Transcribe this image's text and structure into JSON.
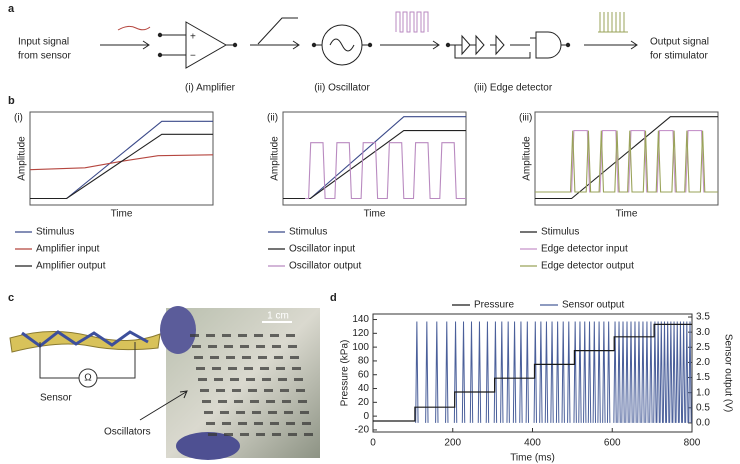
{
  "panel_a": {
    "label": "a",
    "input": [
      "Input signal",
      "from sensor"
    ],
    "amp_signs": [
      "+",
      "−"
    ],
    "stages": [
      "(i) Amplifier",
      "(ii) Oscillator",
      "(iii) Edge detector"
    ],
    "output": [
      "Output signal",
      "for stimulator"
    ]
  },
  "panel_b": {
    "label": "b",
    "plots": [
      {
        "tag": "(i)",
        "ylabel": "Amplitude",
        "xlabel": "Time",
        "legend": [
          {
            "name": "Stimulus",
            "color": "#3b4a8a"
          },
          {
            "name": "Amplifier input",
            "color": "#b5463f"
          },
          {
            "name": "Amplifier output",
            "color": "#222222"
          }
        ]
      },
      {
        "tag": "(ii)",
        "ylabel": "Amplitude",
        "xlabel": "Time",
        "legend": [
          {
            "name": "Stimulus",
            "color": "#3b4a8a"
          },
          {
            "name": "Oscillator input",
            "color": "#222222"
          },
          {
            "name": "Oscillator output",
            "color": "#b98ac0"
          }
        ]
      },
      {
        "tag": "(iii)",
        "ylabel": "Amplitude",
        "xlabel": "Time",
        "legend": [
          {
            "name": "Stimulus",
            "color": "#222222"
          },
          {
            "name": "Edge detector input",
            "color": "#c795cb"
          },
          {
            "name": "Edge detector output",
            "color": "#9aa35a"
          }
        ]
      }
    ]
  },
  "panel_c": {
    "label": "c",
    "scale": "1 cm",
    "ohm": "Ω",
    "sensor": "Sensor",
    "oscillators": "Oscillators"
  },
  "chart_data": {
    "type": "line",
    "panel_label": "d",
    "xlabel": "Time (ms)",
    "ylabel": "Pressure (kPa)",
    "y2label": "Sensor output (V)",
    "xlim": [
      0,
      800
    ],
    "ylim": [
      -23,
      148
    ],
    "y2lim": [
      -0.3,
      3.6
    ],
    "xticks": [
      0,
      200,
      400,
      600,
      800
    ],
    "yticks": [
      -20,
      0,
      20,
      40,
      60,
      80,
      100,
      120,
      140
    ],
    "y2ticks": [
      {
        "value": 0,
        "label": "0.0"
      },
      0.5,
      {
        "value": 1,
        "label": "1.0"
      },
      1.5,
      {
        "value": 2,
        "label": "2.0"
      },
      2.5,
      {
        "value": 3,
        "label": "3.0"
      },
      3.5
    ],
    "series": [
      {
        "name": "Pressure",
        "color": "#1a1a1a",
        "x": [
          0,
          105,
          105,
          205,
          205,
          305,
          305,
          405,
          405,
          505,
          505,
          605,
          605,
          705,
          705,
          800
        ],
        "values": [
          -7,
          -7,
          13,
          13,
          35,
          35,
          55,
          55,
          75,
          75,
          95,
          95,
          115,
          115,
          133,
          133
        ]
      },
      {
        "name": "Sensor output",
        "color": "#4a5f9a",
        "axis": "y2",
        "drawstyle": "spikes",
        "x": [
          110,
          135,
          160,
          185,
          207,
          227,
          247,
          267,
          287,
          307,
          323,
          339,
          355,
          371,
          387,
          407,
          421,
          435,
          449,
          463,
          477,
          491,
          507,
          519,
          531,
          543,
          555,
          567,
          579,
          591,
          607,
          617,
          627,
          637,
          647,
          657,
          667,
          677,
          687,
          697,
          707,
          715,
          723,
          731,
          739,
          747,
          755,
          763,
          771,
          779,
          787,
          795
        ],
        "values": [
          3.35,
          3.35,
          3.35,
          3.35,
          3.35,
          3.35,
          3.35,
          3.35,
          3.35,
          3.35,
          3.35,
          3.35,
          3.35,
          3.35,
          3.35,
          3.35,
          3.35,
          3.35,
          3.35,
          3.35,
          3.35,
          3.35,
          3.35,
          3.35,
          3.35,
          3.35,
          3.35,
          3.35,
          3.35,
          3.35,
          3.35,
          3.35,
          3.35,
          3.35,
          3.35,
          3.35,
          3.35,
          3.35,
          3.35,
          3.35,
          3.35,
          3.35,
          3.35,
          3.35,
          3.35,
          3.35,
          3.35,
          3.35,
          3.35,
          3.35,
          3.35,
          3.35
        ]
      }
    ]
  }
}
